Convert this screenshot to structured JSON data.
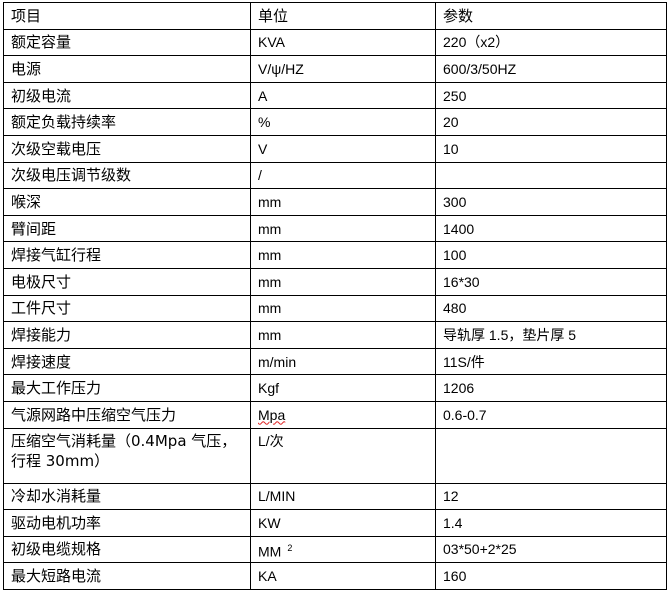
{
  "headers": {
    "item": "项目",
    "unit": "单位",
    "param": "参数"
  },
  "rows": [
    {
      "item": "额定容量",
      "unit": "KVA",
      "param": "220（x2）"
    },
    {
      "item": "电源",
      "unit": "V/ψ/HZ",
      "param": "600/3/50HZ"
    },
    {
      "item": "初级电流",
      "unit": "A",
      "param": "250"
    },
    {
      "item": "额定负载持续率",
      "unit": "%",
      "param": "20"
    },
    {
      "item": "次级空载电压",
      "unit": "V",
      "param": "10"
    },
    {
      "item": "次级电压调节级数",
      "unit": "/",
      "param": ""
    },
    {
      "item": "喉深",
      "unit": "mm",
      "param": "300"
    },
    {
      "item": "臂间距",
      "unit": "mm",
      "param": "1400"
    },
    {
      "item": "焊接气缸行程",
      "unit": "mm",
      "param": "100"
    },
    {
      "item": "电极尺寸",
      "unit": "mm",
      "param": "16*30"
    },
    {
      "item": "工件尺寸",
      "unit": "mm",
      "param": "480"
    },
    {
      "item": "焊接能力",
      "unit": "mm",
      "param": "导轨厚 1.5，垫片厚 5"
    },
    {
      "item": "焊接速度",
      "unit": "m/min",
      "param": "11S/件"
    },
    {
      "item": "最大工作压力",
      "unit": "Kgf",
      "param": "1206"
    },
    {
      "item": "气源网路中压缩空气压力",
      "unit": "Mpa",
      "param": "0.6-0.7"
    },
    {
      "item": "压缩空气消耗量（0.4Mpa 气压，行程 30mm）",
      "unit": "L/次",
      "param": ""
    },
    {
      "item": "冷却水消耗量",
      "unit": "L/MIN",
      "param": "12"
    },
    {
      "item": "驱动电机功率",
      "unit": "KW",
      "param": "1.4"
    },
    {
      "item": "初级电缆规格",
      "unit": "MM",
      "unit_sup": "2",
      "param": "03*50+2*25"
    },
    {
      "item": "最大短路电流",
      "unit": "KA",
      "param": "160"
    }
  ]
}
